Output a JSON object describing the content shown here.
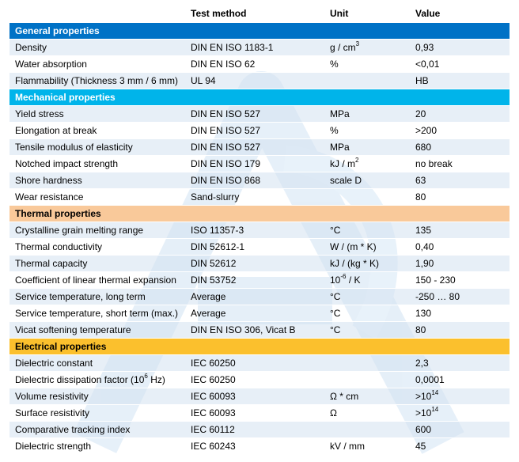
{
  "columns": [
    "",
    "Test method",
    "Unit",
    "Value"
  ],
  "colors": {
    "general": "#0072c6",
    "mechanical": "#00b4ea",
    "thermal": "#f9c99a",
    "electrical": "#fbc02d",
    "row_alt": "#d4e2f0"
  },
  "sections": {
    "general": "General properties",
    "mechanical": "Mechanical properties",
    "thermal": "Thermal properties",
    "electrical": "Electrical properties"
  },
  "rows": {
    "density": {
      "name": "Density",
      "method": "DIN EN ISO 1183-1",
      "unit": "g / cm",
      "unit_sup": "3",
      "value": "0,93"
    },
    "water": {
      "name": "Water absorption",
      "method": "DIN EN ISO 62",
      "unit": "%",
      "value": "<0,01"
    },
    "flam": {
      "name": "Flammability (Thickness 3 mm / 6 mm)",
      "method": "UL 94",
      "unit": "",
      "value": "HB"
    },
    "yield": {
      "name": "Yield stress",
      "method": "DIN EN ISO 527",
      "unit": "MPa",
      "value": "20"
    },
    "elong": {
      "name": "Elongation at break",
      "method": "DIN EN ISO 527",
      "unit": "%",
      "value": ">200"
    },
    "tensile": {
      "name": "Tensile modulus of elasticity",
      "method": "DIN EN ISO 527",
      "unit": "MPa",
      "value": "680"
    },
    "notched": {
      "name": "Notched impact strength",
      "method": "DIN EN ISO 179",
      "unit": "kJ / m",
      "unit_sup": "2",
      "value": "no break"
    },
    "shore": {
      "name": "Shore hardness",
      "method": "DIN EN ISO 868",
      "unit": "scale D",
      "value": "63"
    },
    "wear": {
      "name": "Wear resistance",
      "method": "Sand-slurry",
      "unit": "",
      "value": "80"
    },
    "melt": {
      "name": "Crystalline grain melting range",
      "method": "ISO 11357-3",
      "unit": "°C",
      "value": "135"
    },
    "tconduct": {
      "name": "Thermal conductivity",
      "method": "DIN 52612-1",
      "unit": "W / (m * K)",
      "value": "0,40"
    },
    "tcap": {
      "name": "Thermal capacity",
      "method": "DIN 52612",
      "unit": "kJ / (kg * K)",
      "value": "1,90"
    },
    "expansion": {
      "name": "Coefficient of linear thermal expansion",
      "method": "DIN 53752",
      "unit_pre": "10",
      "unit_sup": "-6",
      "unit_post": " / K",
      "value": "150 - 230"
    },
    "svc_long": {
      "name": "Service temperature, long term",
      "method": "Average",
      "unit": "°C",
      "value": "-250 … 80"
    },
    "svc_short": {
      "name": "Service temperature, short term (max.)",
      "method": "Average",
      "unit": "°C",
      "value": "130"
    },
    "vicat": {
      "name": "Vicat softening temperature",
      "method": "DIN EN ISO 306, Vicat B",
      "unit": "°C",
      "value": "80"
    },
    "dconst": {
      "name": "Dielectric constant",
      "method": "IEC 60250",
      "unit": "",
      "value": "2,3"
    },
    "dissip": {
      "name_pre": "Dielectric dissipation factor (10",
      "name_sup": "6",
      "name_post": " Hz)",
      "method": "IEC 60250",
      "unit": "",
      "value": "0,0001"
    },
    "volres": {
      "name": "Volume resistivity",
      "method": "IEC 60093",
      "unit": "Ω * cm",
      "value_pre": ">10",
      "value_sup": "14"
    },
    "surfres": {
      "name": "Surface resistivity",
      "method": "IEC 60093",
      "unit": "Ω",
      "value_pre": ">10",
      "value_sup": "14"
    },
    "tracking": {
      "name": "Comparative tracking index",
      "method": "IEC 60112",
      "unit": "",
      "value": "600"
    },
    "dstrength": {
      "name": "Dielectric strength",
      "method": "IEC 60243",
      "unit": "kV / mm",
      "value": "45"
    }
  }
}
